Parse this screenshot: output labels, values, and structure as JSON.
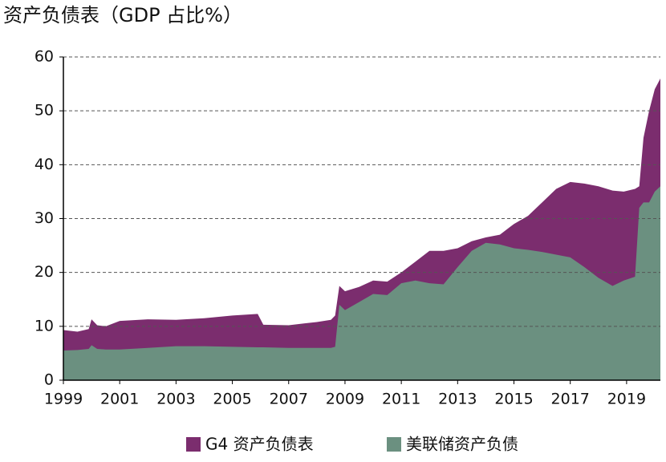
{
  "chart_data": {
    "type": "area",
    "title": "资产负债表（GDP 占比%）",
    "x": [
      1999,
      1999.5,
      1999.9,
      2000,
      2000.2,
      2000.5,
      2001,
      2002,
      2003,
      2004,
      2005,
      2005.9,
      2006.1,
      2007,
      2008,
      2008.5,
      2008.65,
      2008.8,
      2009,
      2009.5,
      2010,
      2010.5,
      2011,
      2011.5,
      2012,
      2012.5,
      2013,
      2013.5,
      2014,
      2014.5,
      2015,
      2015.5,
      2016,
      2016.5,
      2017,
      2017.5,
      2018,
      2018.5,
      2018.9,
      2019.3,
      2019.45,
      2019.6,
      2019.8,
      2020,
      2020.2
    ],
    "series": [
      {
        "name": "G4 资产负债表",
        "color": "#7b2d6e",
        "values": [
          9.3,
          9.0,
          9.5,
          11.3,
          10.2,
          10.0,
          11.0,
          11.3,
          11.2,
          11.5,
          12.0,
          12.3,
          10.3,
          10.2,
          10.8,
          11.2,
          12,
          17.5,
          16.5,
          17.3,
          18.5,
          18.3,
          20,
          22,
          24,
          24,
          24.5,
          25.8,
          26.5,
          27,
          29,
          30.5,
          33,
          35.5,
          36.8,
          36.5,
          36,
          35.2,
          35,
          35.5,
          36,
          45,
          50,
          54,
          56
        ]
      },
      {
        "name": "美联储资产负债",
        "color": "#6b9080",
        "values": [
          5.5,
          5.6,
          5.8,
          6.5,
          5.8,
          5.7,
          5.7,
          6.0,
          6.3,
          6.3,
          6.2,
          6.1,
          6.1,
          6.0,
          6.0,
          6.0,
          6.2,
          14,
          13,
          14.5,
          16,
          15.8,
          18,
          18.5,
          18,
          17.8,
          21,
          24,
          25.5,
          25.2,
          24.5,
          24.2,
          23.8,
          23.3,
          22.8,
          21,
          19,
          17.5,
          18.5,
          19.2,
          32,
          33,
          33,
          35,
          36
        ]
      }
    ],
    "xlim": [
      1999,
      2020.2
    ],
    "xticks": [
      1999,
      2001,
      2003,
      2005,
      2007,
      2009,
      2011,
      2013,
      2015,
      2017,
      2019
    ],
    "ylim": [
      0,
      60
    ],
    "yticks": [
      0,
      10,
      20,
      30,
      40,
      50,
      60
    ],
    "grid": true,
    "legend": "bottom"
  }
}
